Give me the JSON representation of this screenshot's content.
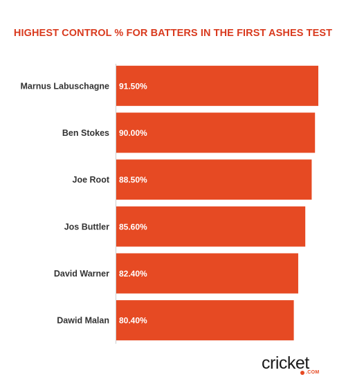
{
  "colors": {
    "bar": "#E64A23",
    "title": "#D93A1E",
    "axis": "#cccccc",
    "brand_accent": "#E64A23"
  },
  "branding": {
    "logo_text": "cricket",
    "logo_domain": ".COM"
  },
  "chart_data": {
    "type": "bar",
    "orientation": "horizontal",
    "title": "HIGHEST CONTROL % FOR BATTERS IN THE FIRST ASHES TEST",
    "xlabel": "",
    "ylabel": "",
    "xlim": [
      0,
      100
    ],
    "grid": false,
    "categories": [
      "Marnus Labuschagne",
      "Ben Stokes",
      "Joe Root",
      "Jos Buttler",
      "David Warner",
      "Dawid Malan"
    ],
    "values": [
      91.5,
      90.0,
      88.5,
      85.6,
      82.4,
      80.4
    ],
    "data_labels": [
      "91.50%",
      "90.00%",
      "88.50%",
      "85.60%",
      "82.40%",
      "80.40%"
    ]
  }
}
